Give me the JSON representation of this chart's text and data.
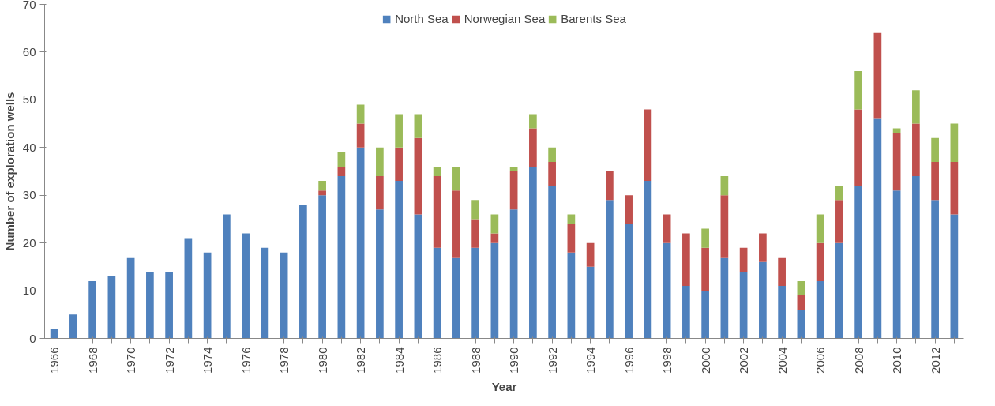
{
  "chart_data": {
    "type": "bar",
    "stacked": true,
    "xlabel": "Year",
    "ylabel": "Number of exploration wells",
    "categories": [
      "1966",
      null,
      "1968",
      null,
      "1970",
      null,
      "1972",
      null,
      "1974",
      null,
      "1976",
      null,
      "1978",
      null,
      "1980",
      null,
      "1982",
      null,
      "1984",
      null,
      "1986",
      null,
      "1988",
      null,
      "1990",
      null,
      "1992",
      null,
      "1994",
      null,
      "1996",
      null,
      "1998",
      null,
      "2000",
      null,
      "2002",
      null,
      "2004",
      null,
      "2006",
      null,
      "2008",
      null,
      "2010",
      null,
      "2012",
      null
    ],
    "series": [
      {
        "name": "North Sea",
        "color": "#4f81bd",
        "values": [
          2,
          5,
          12,
          13,
          17,
          14,
          14,
          21,
          18,
          26,
          22,
          19,
          18,
          28,
          30,
          34,
          40,
          27,
          33,
          26,
          19,
          17,
          19,
          20,
          27,
          36,
          32,
          18,
          15,
          29,
          24,
          33,
          20,
          11,
          10,
          17,
          14,
          16,
          11,
          6,
          12,
          20,
          32,
          46,
          31,
          34,
          29,
          26
        ]
      },
      {
        "name": "Norwegian Sea",
        "color": "#c0504d",
        "values": [
          null,
          null,
          null,
          null,
          null,
          null,
          null,
          null,
          null,
          null,
          null,
          null,
          null,
          null,
          1,
          2,
          5,
          7,
          7,
          16,
          15,
          14,
          6,
          2,
          8,
          8,
          5,
          6,
          5,
          6,
          6,
          15,
          6,
          11,
          9,
          13,
          5,
          6,
          6,
          3,
          8,
          9,
          16,
          18,
          12,
          11,
          8,
          11
        ]
      },
      {
        "name": "Barents Sea",
        "color": "#9bbb59",
        "values": [
          null,
          null,
          null,
          null,
          null,
          null,
          null,
          null,
          null,
          null,
          null,
          null,
          null,
          null,
          2,
          3,
          4,
          6,
          7,
          5,
          2,
          5,
          4,
          4,
          1,
          3,
          3,
          2,
          null,
          null,
          null,
          null,
          null,
          null,
          4,
          4,
          null,
          null,
          null,
          3,
          6,
          3,
          8,
          null,
          1,
          7,
          5,
          8
        ]
      }
    ],
    "ylim": [
      0,
      70
    ],
    "yticks": [
      0,
      10,
      20,
      30,
      40,
      50,
      60,
      70
    ],
    "grid": false,
    "legend": "top"
  }
}
